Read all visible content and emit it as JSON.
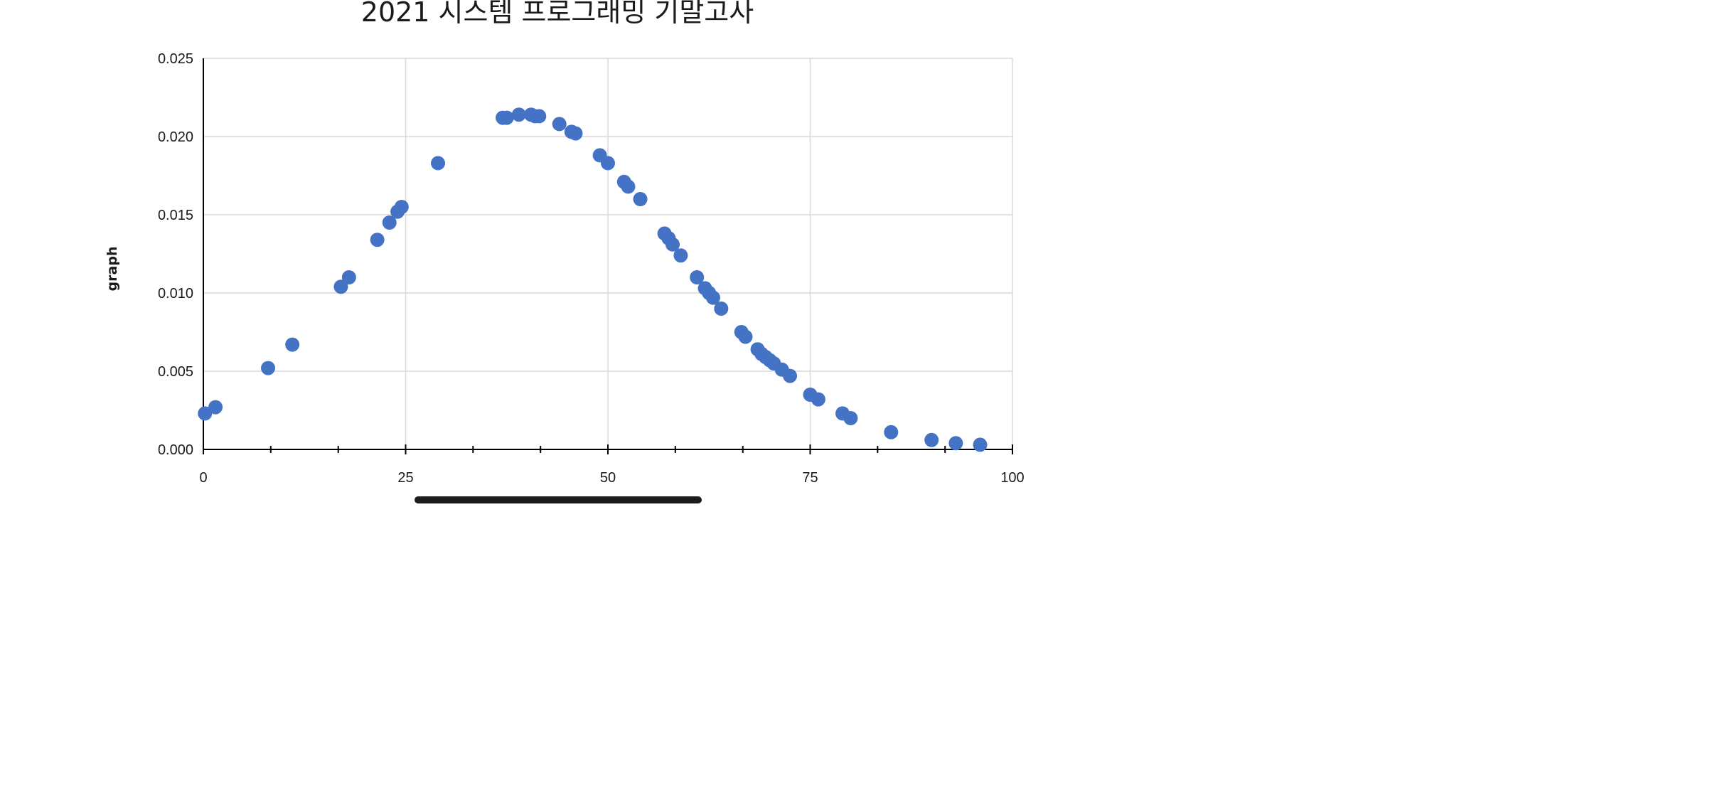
{
  "chart_data": {
    "type": "scatter",
    "title": "2021 시스템 프로그래밍 기말고사",
    "xlabel": "",
    "ylabel": "graph",
    "xlim": [
      0,
      100
    ],
    "ylim": [
      0,
      0.025
    ],
    "x_ticks": [
      0,
      25,
      50,
      75,
      100
    ],
    "x_tick_labels": [
      "0",
      "25",
      "50",
      "75",
      "100"
    ],
    "y_ticks": [
      0,
      0.005,
      0.01,
      0.015,
      0.02,
      0.025
    ],
    "y_tick_labels": [
      "0.000",
      "0.005",
      "0.010",
      "0.015",
      "0.020",
      "0.025"
    ],
    "x_minor_ticks": [
      8.33,
      16.67,
      33.33,
      41.67,
      58.33,
      66.67,
      83.33,
      91.67
    ],
    "grid": true,
    "marker_color": "#4472C4",
    "points": [
      [
        0.2,
        0.0023
      ],
      [
        1.5,
        0.0027
      ],
      [
        8,
        0.0052
      ],
      [
        11,
        0.0067
      ],
      [
        17,
        0.0104
      ],
      [
        18,
        0.011
      ],
      [
        21.5,
        0.0134
      ],
      [
        23,
        0.0145
      ],
      [
        24,
        0.0152
      ],
      [
        24.5,
        0.0155
      ],
      [
        29,
        0.0183
      ],
      [
        37,
        0.0212
      ],
      [
        37.5,
        0.0212
      ],
      [
        39,
        0.0214
      ],
      [
        40.5,
        0.0214
      ],
      [
        41,
        0.0213
      ],
      [
        41.5,
        0.0213
      ],
      [
        44,
        0.0208
      ],
      [
        45.5,
        0.0203
      ],
      [
        46,
        0.0202
      ],
      [
        49,
        0.0188
      ],
      [
        50,
        0.0183
      ],
      [
        52,
        0.0171
      ],
      [
        52.5,
        0.0168
      ],
      [
        54,
        0.016
      ],
      [
        57,
        0.0138
      ],
      [
        57.5,
        0.0135
      ],
      [
        58,
        0.0131
      ],
      [
        59,
        0.0124
      ],
      [
        61,
        0.011
      ],
      [
        62,
        0.0103
      ],
      [
        62.5,
        0.01
      ],
      [
        63,
        0.0097
      ],
      [
        64,
        0.009
      ],
      [
        66.5,
        0.0075
      ],
      [
        67,
        0.0072
      ],
      [
        68.5,
        0.0064
      ],
      [
        69,
        0.0061
      ],
      [
        69.5,
        0.0059
      ],
      [
        70,
        0.0057
      ],
      [
        70.5,
        0.0055
      ],
      [
        71.5,
        0.0051
      ],
      [
        72.5,
        0.0047
      ],
      [
        75,
        0.0035
      ],
      [
        76,
        0.0032
      ],
      [
        79,
        0.0023
      ],
      [
        80,
        0.002
      ],
      [
        85,
        0.0011
      ],
      [
        90,
        0.0006
      ],
      [
        93,
        0.0004
      ],
      [
        96,
        0.0003
      ]
    ]
  }
}
